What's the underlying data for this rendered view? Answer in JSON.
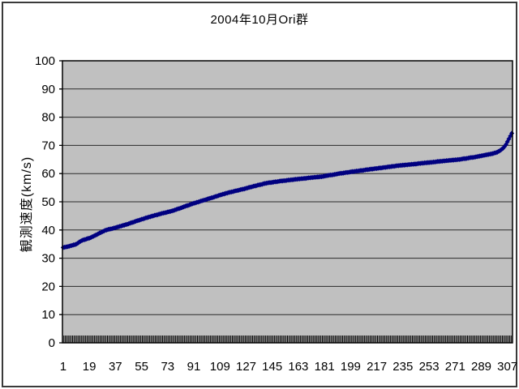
{
  "style": {
    "series_color": "#000080",
    "plot_bg": "#c0c0c0",
    "grid_color": "#2a2a2a",
    "axis_color": "#000000",
    "frame_color": "#3a3a3a",
    "text_color": "#000000"
  },
  "chart_data": {
    "type": "scatter",
    "title": "2004年10月Ori群",
    "xlabel": "",
    "ylabel": "観測速度(km/s)",
    "ylim": [
      0,
      100
    ],
    "y_ticks": [
      0,
      10,
      20,
      30,
      40,
      50,
      60,
      70,
      80,
      90,
      100
    ],
    "x_tick_labels": [
      "1",
      "19",
      "37",
      "55",
      "73",
      "91",
      "109",
      "127",
      "145",
      "163",
      "181",
      "199",
      "217",
      "235",
      "253",
      "271",
      "289",
      "307"
    ],
    "n_points": 310,
    "grid": true,
    "legend": "none",
    "marker": "diamond",
    "values": [
      33.8,
      33.9,
      34.0,
      34.1,
      34.2,
      34.4,
      34.5,
      34.7,
      34.8,
      35.0,
      35.3,
      35.7,
      36.0,
      36.3,
      36.5,
      36.6,
      36.8,
      37.0,
      37.1,
      37.3,
      37.6,
      37.8,
      38.1,
      38.3,
      38.6,
      38.9,
      39.1,
      39.4,
      39.6,
      39.9,
      40.0,
      40.2,
      40.3,
      40.4,
      40.5,
      40.7,
      40.8,
      41.0,
      41.1,
      41.3,
      41.4,
      41.6,
      41.7,
      41.9,
      42.0,
      42.2,
      42.4,
      42.6,
      42.7,
      42.9,
      43.1,
      43.3,
      43.4,
      43.6,
      43.8,
      43.9,
      44.1,
      44.3,
      44.4,
      44.6,
      44.7,
      44.9,
      45.0,
      45.2,
      45.3,
      45.4,
      45.6,
      45.7,
      45.9,
      46.0,
      46.1,
      46.2,
      46.4,
      46.5,
      46.6,
      46.8,
      46.9,
      47.1,
      47.3,
      47.5,
      47.6,
      47.8,
      48.0,
      48.2,
      48.4,
      48.6,
      48.7,
      48.9,
      49.1,
      49.3,
      49.5,
      49.6,
      49.8,
      49.9,
      50.1,
      50.3,
      50.4,
      50.6,
      50.7,
      50.9,
      51.1,
      51.2,
      51.4,
      51.5,
      51.7,
      51.9,
      52.0,
      52.2,
      52.4,
      52.5,
      52.7,
      52.8,
      53.0,
      53.1,
      53.3,
      53.4,
      53.5,
      53.6,
      53.8,
      53.9,
      54.0,
      54.1,
      54.3,
      54.4,
      54.5,
      54.6,
      54.8,
      54.9,
      55.1,
      55.2,
      55.3,
      55.5,
      55.6,
      55.7,
      55.9,
      56.0,
      56.1,
      56.2,
      56.4,
      56.5,
      56.6,
      56.7,
      56.8,
      56.8,
      56.9,
      57.0,
      57.1,
      57.1,
      57.2,
      57.3,
      57.4,
      57.4,
      57.5,
      57.5,
      57.6,
      57.7,
      57.7,
      57.8,
      57.8,
      57.9,
      58.0,
      58.0,
      58.1,
      58.1,
      58.2,
      58.2,
      58.3,
      58.3,
      58.4,
      58.5,
      58.5,
      58.6,
      58.6,
      58.7,
      58.7,
      58.8,
      58.8,
      58.9,
      58.9,
      59.0,
      59.1,
      59.2,
      59.3,
      59.4,
      59.5,
      59.5,
      59.6,
      59.7,
      59.8,
      59.9,
      60.0,
      60.1,
      60.1,
      60.2,
      60.3,
      60.4,
      60.4,
      60.5,
      60.6,
      60.7,
      60.7,
      60.8,
      60.9,
      60.9,
      61.0,
      61.1,
      61.1,
      61.2,
      61.3,
      61.4,
      61.4,
      61.5,
      61.6,
      61.6,
      61.7,
      61.8,
      61.8,
      61.9,
      62.0,
      62.0,
      62.1,
      62.2,
      62.2,
      62.3,
      62.4,
      62.4,
      62.5,
      62.6,
      62.6,
      62.7,
      62.8,
      62.8,
      62.9,
      62.9,
      63.0,
      63.0,
      63.1,
      63.1,
      63.2,
      63.2,
      63.3,
      63.3,
      63.4,
      63.4,
      63.5,
      63.6,
      63.6,
      63.7,
      63.7,
      63.8,
      63.8,
      63.9,
      63.9,
      64.0,
      64.0,
      64.1,
      64.1,
      64.2,
      64.3,
      64.3,
      64.4,
      64.4,
      64.5,
      64.5,
      64.6,
      64.6,
      64.7,
      64.7,
      64.8,
      64.8,
      64.9,
      64.9,
      65.0,
      65.0,
      65.1,
      65.2,
      65.3,
      65.3,
      65.4,
      65.5,
      65.6,
      65.7,
      65.7,
      65.8,
      65.9,
      66.0,
      66.1,
      66.2,
      66.3,
      66.4,
      66.5,
      66.6,
      66.7,
      66.8,
      66.9,
      67.0,
      67.1,
      67.3,
      67.4,
      67.6,
      67.9,
      68.2,
      68.6,
      69.0,
      69.6,
      70.3,
      71.3,
      72.3,
      73.3,
      74.3
    ]
  }
}
